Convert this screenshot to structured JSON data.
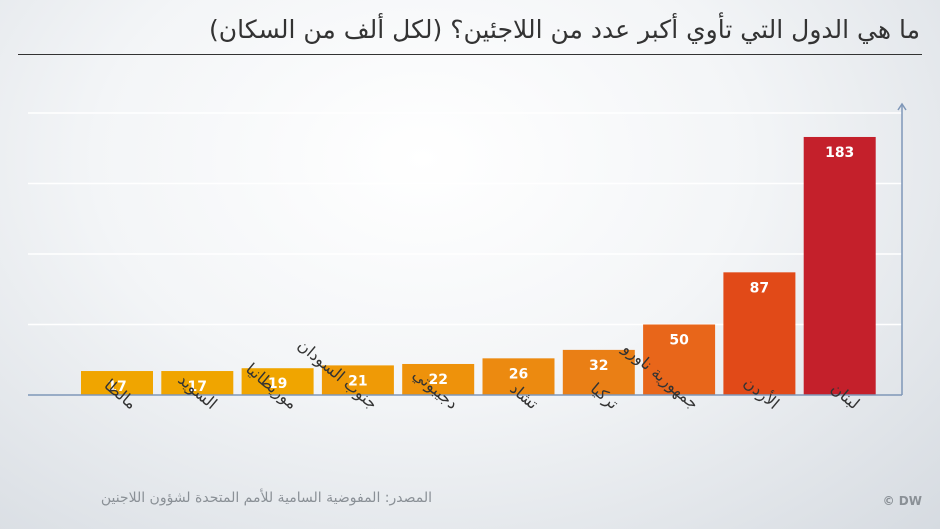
{
  "title": "ما هي الدول التي تأوي أكبر عدد من اللاجئين؟ (لكل ألف من السكان)",
  "source": "المصدر: المفوضية السامية للأمم المتحدة لشؤون اللاجنين",
  "brand": "© DW",
  "chart_data": {
    "type": "bar",
    "title": "ما هي الدول التي تأوي أكبر عدد من اللاجئين؟ (لكل ألف من السكان)",
    "categories": [
      "مالطا",
      "السويد",
      "موريطانيا",
      "جنوب السودان",
      "دجيبوتي",
      "تشاد",
      "تركيا",
      "جمهورية ناورو",
      "الأردن",
      "لبنان"
    ],
    "values": [
      17,
      17,
      19,
      21,
      22,
      26,
      32,
      50,
      87,
      183
    ],
    "colors": [
      "#f0a500",
      "#f0a500",
      "#f0a500",
      "#ef9a06",
      "#ee920b",
      "#ec8a10",
      "#ea7f15",
      "#e8661a",
      "#e14a18",
      "#c4202b"
    ],
    "ylim": [
      0,
      200
    ],
    "grid": true,
    "axis_color": "#7f97b8"
  }
}
